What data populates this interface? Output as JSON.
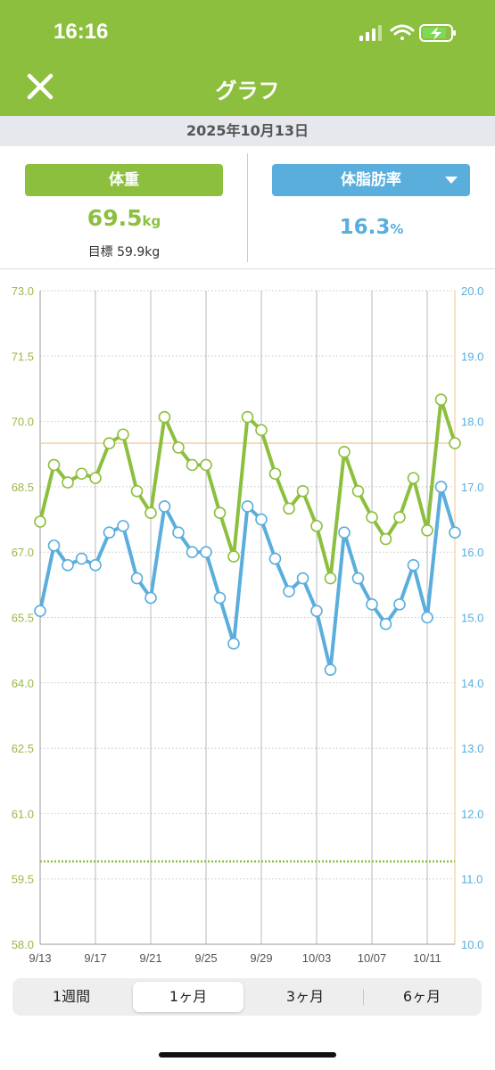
{
  "status": {
    "time": "16:16"
  },
  "nav": {
    "title": "グラフ",
    "close_icon": "close-icon"
  },
  "date": "2025年10月13日",
  "weight_panel": {
    "button_label": "体重",
    "value": "69.5",
    "unit": "kg",
    "goal": "目標 59.9kg"
  },
  "fat_panel": {
    "button_label": "体脂肪率",
    "value": "16.3",
    "unit": "%"
  },
  "range_tabs": [
    {
      "label": "1週間",
      "active": false
    },
    {
      "label": "1ヶ月",
      "active": true
    },
    {
      "label": "3ヶ月",
      "active": false
    },
    {
      "label": "6ヶ月",
      "active": false
    }
  ],
  "colors": {
    "weight": "#8dbf3f",
    "fat": "#5aaedc",
    "grid": "#b8b8b8",
    "reference": "#f0c58a"
  },
  "chart_data": {
    "type": "line",
    "x": [
      "9/13",
      "9/14",
      "9/15",
      "9/16",
      "9/17",
      "9/18",
      "9/19",
      "9/20",
      "9/21",
      "9/22",
      "9/23",
      "9/24",
      "9/25",
      "9/26",
      "9/27",
      "9/28",
      "9/29",
      "9/30",
      "10/01",
      "10/02",
      "10/03",
      "10/04",
      "10/05",
      "10/06",
      "10/07",
      "10/08",
      "10/09",
      "10/10",
      "10/11",
      "10/12",
      "10/13"
    ],
    "x_ticks": [
      "9/13",
      "9/17",
      "9/21",
      "9/25",
      "9/29",
      "10/03",
      "10/07",
      "10/11"
    ],
    "series": [
      {
        "axis": "left",
        "values": [
          67.7,
          69.0,
          68.6,
          68.8,
          68.7,
          69.5,
          69.7,
          68.4,
          67.9,
          70.1,
          69.4,
          69.0,
          69.0,
          67.9,
          66.9,
          70.1,
          69.8,
          68.8,
          68.0,
          68.4,
          67.6,
          66.4,
          69.3,
          68.4,
          67.8,
          67.3,
          67.8,
          68.7,
          67.5,
          70.5,
          69.5
        ]
      },
      {
        "axis": "right",
        "values": [
          15.1,
          16.1,
          15.8,
          15.9,
          15.8,
          16.3,
          16.4,
          15.6,
          15.3,
          16.7,
          16.3,
          16.0,
          16.0,
          15.3,
          14.6,
          16.7,
          16.5,
          15.9,
          15.4,
          15.6,
          15.1,
          14.2,
          16.3,
          15.6,
          15.2,
          14.9,
          15.2,
          15.8,
          15.0,
          17.0,
          16.3
        ]
      }
    ],
    "y_left": {
      "ticks": [
        "73.0",
        "71.5",
        "70.0",
        "68.5",
        "67.0",
        "65.5",
        "64.0",
        "62.5",
        "61.0",
        "59.5",
        "58.0"
      ],
      "ylim": [
        58.0,
        73.0
      ]
    },
    "y_right": {
      "ticks": [
        "20.0",
        "19.0",
        "18.0",
        "17.0",
        "16.0",
        "15.0",
        "14.0",
        "13.0",
        "12.0",
        "11.0",
        "10.0"
      ],
      "ylim": [
        10.0,
        20.0
      ]
    },
    "goal_weight": 59.9,
    "reference_weight": 69.5
  }
}
